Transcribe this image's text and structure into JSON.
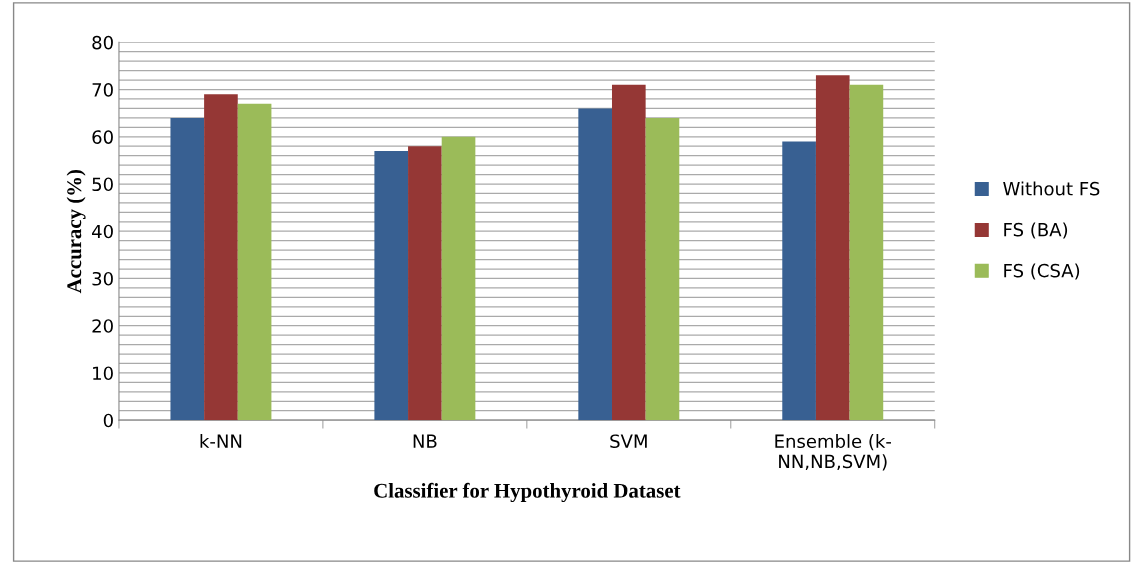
{
  "chart_data": {
    "type": "bar",
    "xlabel": "Classifier for Hypothyroid Dataset",
    "ylabel": "Accuracy (%)",
    "categories": [
      "k-NN",
      "NB",
      "SVM",
      "Ensemble (k-\nNN,NB,SVM)"
    ],
    "series": [
      {
        "name": "Without FS",
        "color": "#386092",
        "values": [
          64,
          57,
          66,
          59
        ]
      },
      {
        "name": "FS (BA)",
        "color": "#953735",
        "values": [
          69,
          58,
          71,
          73
        ]
      },
      {
        "name": "FS (CSA)",
        "color": "#9bbb59",
        "values": [
          67,
          60,
          64,
          71
        ]
      }
    ],
    "ylim": [
      0,
      80
    ],
    "yticks": [
      0,
      {
        "value": 2,
        "label": null
      },
      {
        "value": 4,
        "label": null
      },
      {
        "value": 6,
        "label": null
      },
      {
        "value": 8,
        "label": null
      },
      10,
      {
        "value": 12,
        "label": null
      },
      {
        "value": 14,
        "label": null
      },
      {
        "value": 16,
        "label": null
      },
      {
        "value": 18,
        "label": null
      },
      20,
      {
        "value": 22,
        "label": null
      },
      {
        "value": 24,
        "label": null
      },
      {
        "value": 26,
        "label": null
      },
      {
        "value": 28,
        "label": null
      },
      30,
      {
        "value": 32,
        "label": null
      },
      {
        "value": 34,
        "label": null
      },
      {
        "value": 36,
        "label": null
      },
      {
        "value": 38,
        "label": null
      },
      40,
      {
        "value": 42,
        "label": null
      },
      {
        "value": 44,
        "label": null
      },
      {
        "value": 46,
        "label": null
      },
      {
        "value": 48,
        "label": null
      },
      50,
      {
        "value": 52,
        "label": null
      },
      {
        "value": 54,
        "label": null
      },
      {
        "value": 56,
        "label": null
      },
      {
        "value": 58,
        "label": null
      },
      60,
      {
        "value": 62,
        "label": null
      },
      {
        "value": 64,
        "label": null
      },
      {
        "value": 66,
        "label": null
      },
      {
        "value": 68,
        "label": null
      },
      70,
      {
        "value": 72,
        "label": null
      },
      {
        "value": 74,
        "label": null
      },
      {
        "value": 76,
        "label": null
      },
      {
        "value": 78,
        "label": null
      },
      80
    ],
    "grid": "y",
    "legend": "right"
  }
}
